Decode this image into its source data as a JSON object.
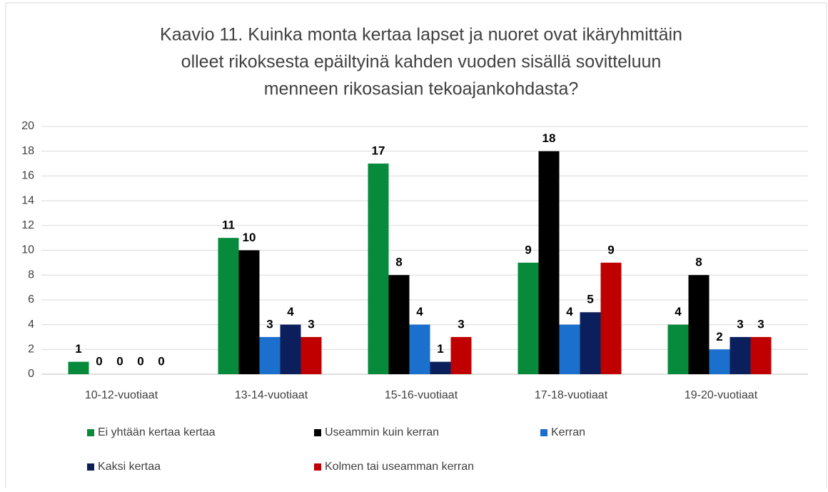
{
  "chart_data": {
    "type": "bar",
    "title": [
      "Kaavio 11. Kuinka monta kertaa lapset ja nuoret ovat ikäryhmittäin",
      "olleet rikoksesta epäiltyinä kahden vuoden sisällä sovitteluun",
      "menneen rikosasian tekoajankohdasta?"
    ],
    "categories": [
      "10-12-vuotiaat",
      "13-14-vuotiaat",
      "15-16-vuotiaat",
      "17-18-vuotiaat",
      "19-20-vuotiaat"
    ],
    "series": [
      {
        "name": "Ei yhtään kertaa kertaa",
        "color": "#078a3c",
        "values": [
          1,
          11,
          17,
          9,
          4
        ]
      },
      {
        "name": "Useammin kuin kerran",
        "color": "#000000",
        "values": [
          0,
          10,
          8,
          18,
          8
        ]
      },
      {
        "name": "Kerran",
        "color": "#1b6fcd",
        "values": [
          0,
          3,
          4,
          4,
          2
        ]
      },
      {
        "name": "Kaksi kertaa",
        "color": "#0b1f5c",
        "values": [
          0,
          4,
          1,
          5,
          3
        ]
      },
      {
        "name": "Kolmen tai useamman kerran",
        "color": "#c00000",
        "values": [
          0,
          3,
          3,
          9,
          3
        ]
      }
    ],
    "ylim": [
      0,
      20
    ],
    "yticks": [
      0,
      2,
      4,
      6,
      8,
      10,
      12,
      14,
      16,
      18,
      20
    ],
    "grid": true
  }
}
